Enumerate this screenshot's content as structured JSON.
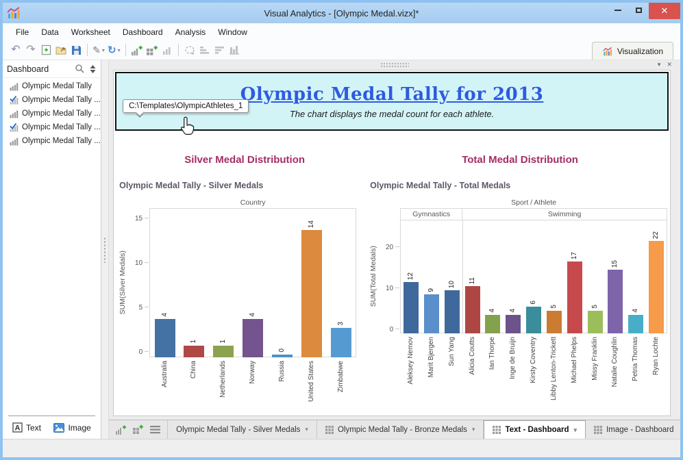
{
  "window": {
    "title": "Visual Analytics - [Olympic Medal.vizx]*",
    "controls": [
      "minimize",
      "maximize",
      "close"
    ],
    "close_glyph": "✕"
  },
  "menu": {
    "items": [
      "File",
      "Data",
      "Worksheet",
      "Dashboard",
      "Analysis",
      "Window"
    ]
  },
  "toolbar": {
    "groups": [
      [
        "undo",
        "redo",
        "new-file",
        "open",
        "save"
      ],
      [
        "format",
        "refresh"
      ],
      [
        "add-worksheet",
        "add-dashboard",
        "show-chart"
      ],
      [
        "lasso-select",
        "sort-ascending",
        "sort-descending",
        "grouped-bars"
      ]
    ]
  },
  "visualization_tab": {
    "label": "Visualization"
  },
  "sidebar": {
    "header": "Dashboard",
    "items": [
      {
        "label": "Olympic Medal Tally",
        "checked": false
      },
      {
        "label": "Olympic Medal Tally ...",
        "checked": true
      },
      {
        "label": "Olympic Medal Tally ...",
        "checked": false
      },
      {
        "label": "Olympic Medal Tally ...",
        "checked": true
      },
      {
        "label": "Olympic Medal Tally ...",
        "checked": false
      }
    ],
    "footer": {
      "text_button": "Text",
      "image_button": "Image"
    }
  },
  "dashboard": {
    "header": {
      "title": "Olympic Medal Tally for 2013",
      "subtitle": "The chart displays the medal count for each athlete."
    },
    "tooltip": "C:\\Templates\\OlympicAthletes_1",
    "sections": [
      {
        "heading": "Silver Medal Distribution"
      },
      {
        "heading": "Total Medal Distribution"
      }
    ]
  },
  "chart_data": [
    {
      "type": "bar",
      "title": "Olympic Medal Tally - Silver Medals",
      "xlabel": "Country",
      "ylabel": "SUM(Silver Medals)",
      "categories": [
        "Australia",
        "China",
        "Netherlands",
        "Norway",
        "Russia",
        "United States",
        "Zimbabwe"
      ],
      "values": [
        4,
        1,
        1,
        4,
        0,
        14,
        3
      ],
      "colors": [
        "#4472a4",
        "#ad4a46",
        "#8ba24e",
        "#74548e",
        "#4e8fc4",
        "#dc8a3d",
        "#559bd2"
      ],
      "yticks": [
        0,
        5,
        10,
        15
      ],
      "ylim": [
        0,
        15.5
      ],
      "grid": false,
      "legend": false
    },
    {
      "type": "bar",
      "title": "Olympic Medal Tally - Total Medals",
      "xlabel": "Sport / Athlete",
      "ylabel": "SUM(Total Medals)",
      "groups": [
        {
          "label": "Gymnastics",
          "span": 3
        },
        {
          "label": "Swimming",
          "span": 10
        }
      ],
      "categories": [
        "Aleksey Nemov",
        "Marit Bjergen",
        "Sun Yang",
        "Alicia Coutts",
        "Ian Thorpe",
        "Inge de Bruijn",
        "Kirsty Coventry",
        "Libby Lenton-Trickett",
        "Michael Phelps",
        "Missy Franklin",
        "Natalie Coughlin",
        "Petria Thomas",
        "Ryan Lochte"
      ],
      "values": [
        12,
        9,
        10,
        11,
        4,
        4,
        6,
        5,
        17,
        5,
        15,
        4,
        22
      ],
      "colors": [
        "#3f699c",
        "#5b8fcb",
        "#3f699c",
        "#ae4744",
        "#84a14c",
        "#6d538b",
        "#3a8d9a",
        "#cc7b33",
        "#c64a4c",
        "#9cbd5c",
        "#7e64a8",
        "#48aec8",
        "#f59b49"
      ],
      "yticks": [
        0,
        10,
        20
      ],
      "ylim": [
        0,
        24
      ],
      "grid": false,
      "legend": false
    }
  ],
  "bottom_tabs": {
    "items": [
      {
        "label": "Olympic Medal Tally - Silver Medals",
        "active": false,
        "icon": "none",
        "caret": true
      },
      {
        "label": "Olympic Medal Tally - Bronze Medals",
        "active": false,
        "icon": "dashboard-grid",
        "caret": true
      },
      {
        "label": "Text - Dashboard",
        "active": true,
        "icon": "dashboard-grid",
        "caret": true
      },
      {
        "label": "Image - Dashboard",
        "active": false,
        "icon": "dashboard-grid",
        "caret": false
      }
    ]
  },
  "colors": {
    "titlebar": "#aed1f2",
    "close_red": "#d9534e",
    "header_box_bg": "#d3f4f7",
    "dashboard_title_blue": "#2d5be0",
    "section_heading_magenta": "#a42d64",
    "worksheet_title_gray": "#5f5666"
  }
}
